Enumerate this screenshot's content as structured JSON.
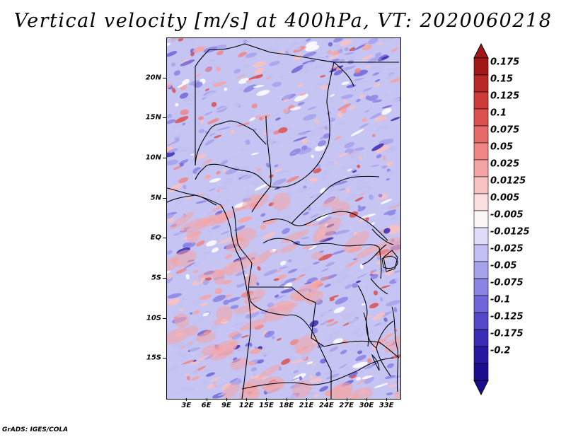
{
  "title": "Vertical velocity [m/s] at 400hPa, VT: 2020060218",
  "credit": "GrADS: IGES/COLA",
  "map": {
    "projection": "latlon",
    "lon_range": [
      0,
      35
    ],
    "lat_range": [
      -20,
      25
    ],
    "y_ticks": [
      {
        "label": "20N",
        "lat": 20
      },
      {
        "label": "15N",
        "lat": 15
      },
      {
        "label": "10N",
        "lat": 10
      },
      {
        "label": "5N",
        "lat": 5
      },
      {
        "label": "EQ",
        "lat": 0
      },
      {
        "label": "5S",
        "lat": -5
      },
      {
        "label": "10S",
        "lat": -10
      },
      {
        "label": "15S",
        "lat": -15
      }
    ],
    "x_ticks": [
      {
        "label": "3E",
        "lon": 3
      },
      {
        "label": "6E",
        "lon": 6
      },
      {
        "label": "9E",
        "lon": 9
      },
      {
        "label": "12E",
        "lon": 12
      },
      {
        "label": "15E",
        "lon": 15
      },
      {
        "label": "18E",
        "lon": 18
      },
      {
        "label": "21E",
        "lon": 21
      },
      {
        "label": "24E",
        "lon": 24
      },
      {
        "label": "27E",
        "lon": 27
      },
      {
        "label": "30E",
        "lon": 30
      },
      {
        "label": "33E",
        "lon": 33
      }
    ]
  },
  "colorbar": {
    "levels": [
      {
        "label": "0.175",
        "color": "#a01818"
      },
      {
        "label": "0.15",
        "color": "#b82828"
      },
      {
        "label": "0.125",
        "color": "#cc3a3a"
      },
      {
        "label": "0.1",
        "color": "#dc5050"
      },
      {
        "label": "0.075",
        "color": "#e66a6a"
      },
      {
        "label": "0.05",
        "color": "#ee8686"
      },
      {
        "label": "0.025",
        "color": "#f4a4a4"
      },
      {
        "label": "0.0125",
        "color": "#f8c2c2"
      },
      {
        "label": "0.005",
        "color": "#fbdede"
      },
      {
        "label": "-0.005",
        "color": "#fdf6f6"
      },
      {
        "label": "-0.0125",
        "color": "#dedcf8"
      },
      {
        "label": "-0.025",
        "color": "#c2c0f2"
      },
      {
        "label": "-0.05",
        "color": "#a6a2ec"
      },
      {
        "label": "-0.075",
        "color": "#8a84e4"
      },
      {
        "label": "-0.1",
        "color": "#6e66d8"
      },
      {
        "label": "-0.125",
        "color": "#5248c8"
      },
      {
        "label": "-0.175",
        "color": "#3a2cb4"
      },
      {
        "label": "-0.2",
        "color": "#2818a0"
      }
    ],
    "top_color": "#a01818",
    "bottom_color": "#1c0c90"
  }
}
